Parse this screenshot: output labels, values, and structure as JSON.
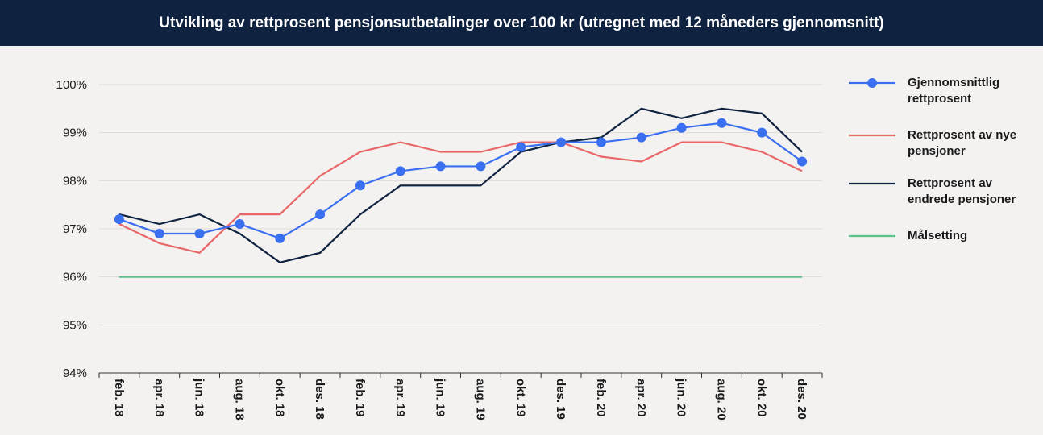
{
  "chart_data": {
    "type": "line",
    "title": "Utvikling av rettprosent pensjonsutbetalinger over 100 kr (utregnet med 12 måneders gjennomsnitt)",
    "categories": [
      "feb. 18",
      "apr. 18",
      "jun. 18",
      "aug. 18",
      "okt. 18",
      "des. 18",
      "feb. 19",
      "apr. 19",
      "jun. 19",
      "aug. 19",
      "okt. 19",
      "des. 19",
      "feb. 20",
      "apr. 20",
      "jun. 20",
      "aug. 20",
      "okt. 20",
      "des. 20"
    ],
    "series": [
      {
        "name": "Gjennomsnittlig rettprosent",
        "color": "#3a6ff0",
        "markers": true,
        "values": [
          97.2,
          96.9,
          96.9,
          97.1,
          96.8,
          97.3,
          97.9,
          98.2,
          98.3,
          98.3,
          98.7,
          98.8,
          98.8,
          98.9,
          99.1,
          99.2,
          99.0,
          98.4
        ]
      },
      {
        "name": "Rettprosent av nye pensjoner",
        "color": "#e8686a",
        "values": [
          97.1,
          96.7,
          96.5,
          97.3,
          97.3,
          98.1,
          98.6,
          98.8,
          98.6,
          98.6,
          98.8,
          98.8,
          98.5,
          98.4,
          98.8,
          98.8,
          98.6,
          98.2
        ]
      },
      {
        "name": "Rettprosent av endrede pensjoner",
        "color": "#0f2341",
        "values": [
          97.3,
          97.1,
          97.3,
          96.9,
          96.3,
          96.5,
          97.3,
          97.9,
          97.9,
          97.9,
          98.6,
          98.8,
          98.9,
          99.5,
          99.3,
          99.5,
          99.4,
          98.6
        ]
      },
      {
        "name": "Målsetting",
        "color": "#5cc08a",
        "values": [
          96,
          96,
          96,
          96,
          96,
          96,
          96,
          96,
          96,
          96,
          96,
          96,
          96,
          96,
          96,
          96,
          96,
          96
        ]
      }
    ],
    "ylim": [
      94,
      100
    ],
    "yticks": [
      {
        "value": 94,
        "label": "94%"
      },
      {
        "value": 95,
        "label": "95%"
      },
      {
        "value": 96,
        "label": "96%"
      },
      {
        "value": 97,
        "label": "97%"
      },
      {
        "value": 98,
        "label": "98%"
      },
      {
        "value": 99,
        "label": "99%"
      },
      {
        "value": 100,
        "label": "100%"
      }
    ],
    "grid": true
  }
}
